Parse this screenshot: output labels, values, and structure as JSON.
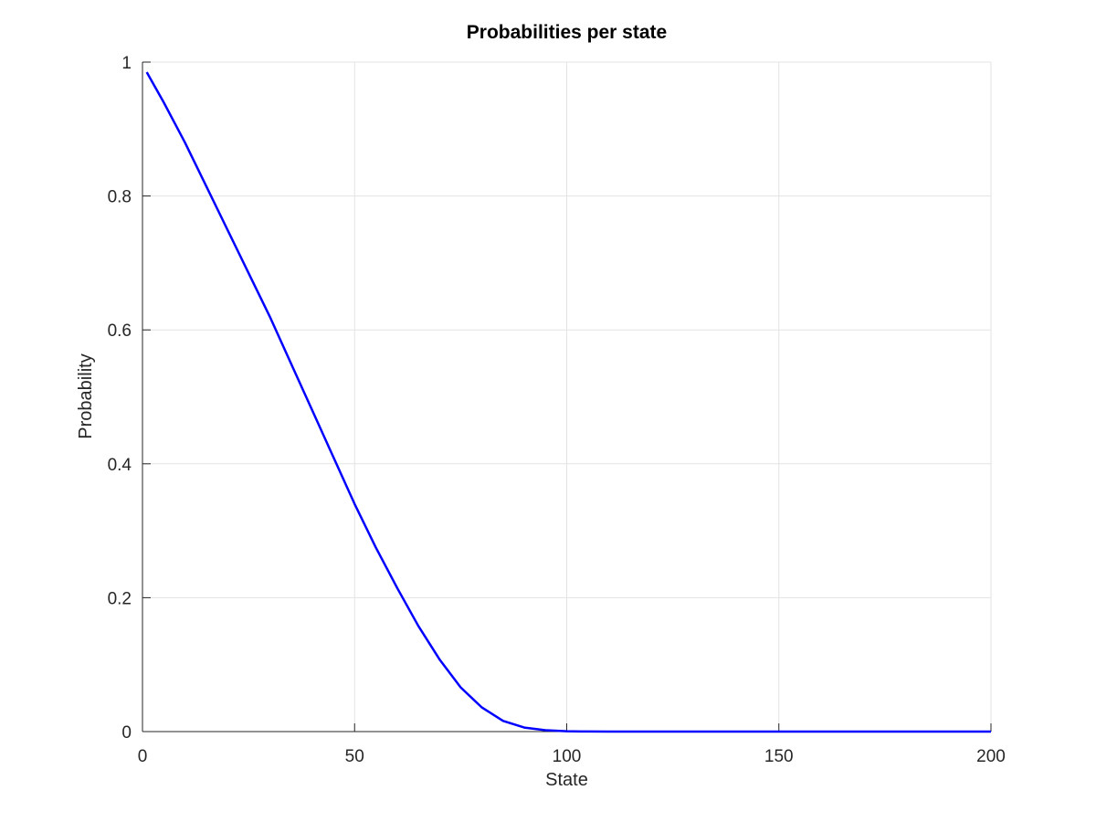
{
  "chart_data": {
    "type": "line",
    "title": "Probabilities per state",
    "xlabel": "State",
    "ylabel": "Probability",
    "xlim": [
      0,
      200
    ],
    "ylim": [
      0,
      1
    ],
    "xticks": [
      0,
      50,
      100,
      150,
      200
    ],
    "yticks": [
      0,
      0.2,
      0.4,
      0.6,
      0.8,
      1
    ],
    "xtick_labels": [
      "0",
      "50",
      "100",
      "150",
      "200"
    ],
    "ytick_labels": [
      "0",
      "0.2",
      "0.4",
      "0.6",
      "0.8",
      "1"
    ],
    "grid": true,
    "legend": "none",
    "series": [
      {
        "color": "#0000ff",
        "x": [
          1,
          5,
          10,
          15,
          20,
          25,
          30,
          35,
          40,
          45,
          50,
          55,
          60,
          65,
          70,
          75,
          80,
          85,
          90,
          95,
          100,
          105,
          110,
          120,
          140,
          160,
          180,
          200
        ],
        "y": [
          0.985,
          0.94,
          0.88,
          0.815,
          0.75,
          0.685,
          0.62,
          0.55,
          0.48,
          0.41,
          0.34,
          0.275,
          0.215,
          0.158,
          0.108,
          0.066,
          0.036,
          0.016,
          0.006,
          0.002,
          0.0005,
          0.0001,
          0,
          0,
          0,
          0,
          0,
          0
        ]
      }
    ]
  }
}
